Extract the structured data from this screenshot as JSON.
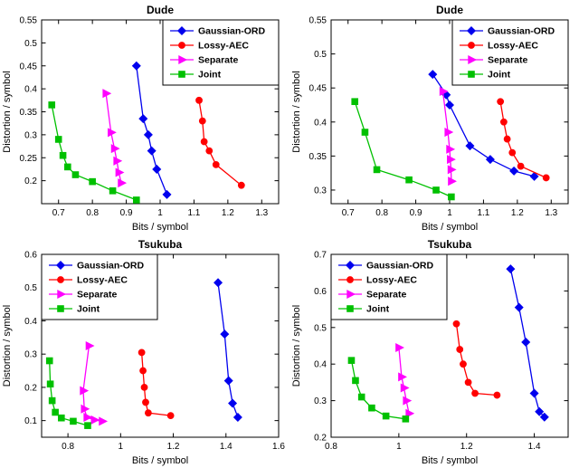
{
  "figure": {
    "background": "#ffffff",
    "legend_labels": [
      "Gaussian-ORD",
      "Lossy-AEC",
      "Separate",
      "Joint"
    ],
    "colors": {
      "gaussian_ord": "#0000EE",
      "lossy_aec": "#FF0000",
      "separate": "#FF00FF",
      "joint": "#00C000"
    }
  },
  "chart_data": [
    {
      "type": "line",
      "title": "Dude",
      "xlabel": "Bits / symbol",
      "ylabel": "Distortion / symbol",
      "xlim": [
        0.65,
        1.35
      ],
      "ylim": [
        0.15,
        0.55
      ],
      "xticks": [
        0.7,
        0.8,
        0.9,
        1,
        1.1,
        1.2,
        1.3
      ],
      "yticks": [
        0.2,
        0.25,
        0.3,
        0.35,
        0.4,
        0.45,
        0.5,
        0.55
      ],
      "grid": false,
      "legend_pos": "top-right",
      "series": [
        {
          "name": "Gaussian-ORD",
          "color": "#0000EE",
          "marker": "diamond",
          "points": [
            [
              0.93,
              0.45
            ],
            [
              0.95,
              0.335
            ],
            [
              0.965,
              0.3
            ],
            [
              0.975,
              0.265
            ],
            [
              0.99,
              0.225
            ],
            [
              1.02,
              0.17
            ]
          ]
        },
        {
          "name": "Lossy-AEC",
          "color": "#FF0000",
          "marker": "circle",
          "points": [
            [
              1.115,
              0.375
            ],
            [
              1.125,
              0.33
            ],
            [
              1.13,
              0.285
            ],
            [
              1.145,
              0.265
            ],
            [
              1.165,
              0.235
            ],
            [
              1.24,
              0.19
            ]
          ]
        },
        {
          "name": "Separate",
          "color": "#FF00FF",
          "marker": "triangle-right",
          "points": [
            [
              0.84,
              0.39
            ],
            [
              0.855,
              0.305
            ],
            [
              0.865,
              0.27
            ],
            [
              0.872,
              0.243
            ],
            [
              0.878,
              0.218
            ],
            [
              0.885,
              0.195
            ]
          ]
        },
        {
          "name": "Joint",
          "color": "#00C000",
          "marker": "square",
          "points": [
            [
              0.68,
              0.365
            ],
            [
              0.7,
              0.29
            ],
            [
              0.713,
              0.255
            ],
            [
              0.727,
              0.23
            ],
            [
              0.75,
              0.213
            ],
            [
              0.8,
              0.198
            ],
            [
              0.86,
              0.178
            ],
            [
              0.93,
              0.158
            ]
          ]
        }
      ]
    },
    {
      "type": "line",
      "title": "Dude",
      "xlabel": "Bits / symbol",
      "ylabel": "Distortion / symbol",
      "xlim": [
        0.65,
        1.35
      ],
      "ylim": [
        0.28,
        0.55
      ],
      "xticks": [
        0.7,
        0.8,
        0.9,
        1,
        1.1,
        1.2,
        1.3
      ],
      "yticks": [
        0.3,
        0.35,
        0.4,
        0.45,
        0.5,
        0.55
      ],
      "grid": false,
      "legend_pos": "top-right",
      "series": [
        {
          "name": "Gaussian-ORD",
          "color": "#0000EE",
          "marker": "diamond",
          "points": [
            [
              0.95,
              0.47
            ],
            [
              0.99,
              0.44
            ],
            [
              1.0,
              0.425
            ],
            [
              1.06,
              0.365
            ],
            [
              1.12,
              0.345
            ],
            [
              1.19,
              0.328
            ],
            [
              1.25,
              0.32
            ]
          ]
        },
        {
          "name": "Lossy-AEC",
          "color": "#FF0000",
          "marker": "circle",
          "points": [
            [
              1.15,
              0.43
            ],
            [
              1.16,
              0.4
            ],
            [
              1.17,
              0.375
            ],
            [
              1.185,
              0.355
            ],
            [
              1.21,
              0.335
            ],
            [
              1.285,
              0.318
            ]
          ]
        },
        {
          "name": "Separate",
          "color": "#FF00FF",
          "marker": "triangle-right",
          "points": [
            [
              0.98,
              0.445
            ],
            [
              0.995,
              0.385
            ],
            [
              1.0,
              0.36
            ],
            [
              1.002,
              0.345
            ],
            [
              1.004,
              0.33
            ],
            [
              1.005,
              0.313
            ]
          ]
        },
        {
          "name": "Joint",
          "color": "#00C000",
          "marker": "square",
          "points": [
            [
              0.72,
              0.43
            ],
            [
              0.75,
              0.385
            ],
            [
              0.785,
              0.33
            ],
            [
              0.88,
              0.315
            ],
            [
              0.96,
              0.3
            ],
            [
              1.005,
              0.29
            ]
          ]
        }
      ]
    },
    {
      "type": "line",
      "title": "Tsukuba",
      "xlabel": "Bits / symbol",
      "ylabel": "Distortion / symbol",
      "xlim": [
        0.7,
        1.6
      ],
      "ylim": [
        0.05,
        0.6
      ],
      "xticks": [
        0.8,
        1,
        1.2,
        1.4,
        1.6
      ],
      "yticks": [
        0.1,
        0.2,
        0.3,
        0.4,
        0.5,
        0.6
      ],
      "grid": false,
      "legend_pos": "top-left",
      "series": [
        {
          "name": "Gaussian-ORD",
          "color": "#0000EE",
          "marker": "diamond",
          "points": [
            [
              1.37,
              0.515
            ],
            [
              1.395,
              0.36
            ],
            [
              1.41,
              0.22
            ],
            [
              1.425,
              0.152
            ],
            [
              1.445,
              0.11
            ]
          ]
        },
        {
          "name": "Lossy-AEC",
          "color": "#FF0000",
          "marker": "circle",
          "points": [
            [
              1.08,
              0.305
            ],
            [
              1.085,
              0.25
            ],
            [
              1.09,
              0.2
            ],
            [
              1.095,
              0.155
            ],
            [
              1.105,
              0.123
            ],
            [
              1.19,
              0.115
            ]
          ]
        },
        {
          "name": "Separate",
          "color": "#FF00FF",
          "marker": "triangle-right",
          "points": [
            [
              0.88,
              0.325
            ],
            [
              0.858,
              0.19
            ],
            [
              0.862,
              0.135
            ],
            [
              0.872,
              0.11
            ],
            [
              0.9,
              0.102
            ],
            [
              0.93,
              0.098
            ]
          ]
        },
        {
          "name": "Joint",
          "color": "#00C000",
          "marker": "square",
          "points": [
            [
              0.73,
              0.28
            ],
            [
              0.733,
              0.21
            ],
            [
              0.74,
              0.16
            ],
            [
              0.752,
              0.125
            ],
            [
              0.775,
              0.108
            ],
            [
              0.82,
              0.098
            ],
            [
              0.875,
              0.085
            ]
          ]
        }
      ]
    },
    {
      "type": "line",
      "title": "Tsukuba",
      "xlabel": "Bits / symbol",
      "ylabel": "Distortion / symbol",
      "xlim": [
        0.8,
        1.5
      ],
      "ylim": [
        0.2,
        0.7
      ],
      "xticks": [
        0.8,
        1,
        1.2,
        1.4
      ],
      "yticks": [
        0.2,
        0.3,
        0.4,
        0.5,
        0.6,
        0.7
      ],
      "grid": false,
      "legend_pos": "top-left",
      "series": [
        {
          "name": "Gaussian-ORD",
          "color": "#0000EE",
          "marker": "diamond",
          "points": [
            [
              1.33,
              0.66
            ],
            [
              1.355,
              0.555
            ],
            [
              1.375,
              0.46
            ],
            [
              1.4,
              0.32
            ],
            [
              1.415,
              0.27
            ],
            [
              1.43,
              0.255
            ]
          ]
        },
        {
          "name": "Lossy-AEC",
          "color": "#FF0000",
          "marker": "circle",
          "points": [
            [
              1.17,
              0.51
            ],
            [
              1.18,
              0.44
            ],
            [
              1.19,
              0.4
            ],
            [
              1.205,
              0.35
            ],
            [
              1.225,
              0.32
            ],
            [
              1.29,
              0.315
            ]
          ]
        },
        {
          "name": "Separate",
          "color": "#FF00FF",
          "marker": "triangle-right",
          "points": [
            [
              1.0,
              0.445
            ],
            [
              1.008,
              0.365
            ],
            [
              1.015,
              0.335
            ],
            [
              1.022,
              0.3
            ],
            [
              1.03,
              0.265
            ]
          ]
        },
        {
          "name": "Joint",
          "color": "#00C000",
          "marker": "square",
          "points": [
            [
              0.86,
              0.41
            ],
            [
              0.872,
              0.355
            ],
            [
              0.89,
              0.31
            ],
            [
              0.92,
              0.28
            ],
            [
              0.962,
              0.258
            ],
            [
              1.02,
              0.25
            ]
          ]
        }
      ]
    }
  ]
}
